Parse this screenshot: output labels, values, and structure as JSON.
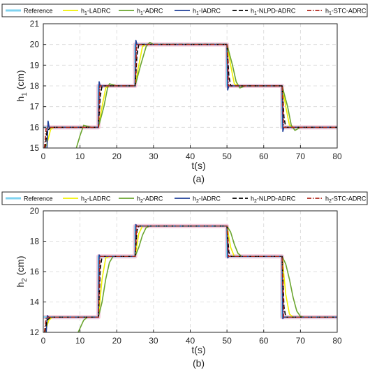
{
  "chart_data": [
    {
      "type": "line",
      "caption": "(a)",
      "xlabel": "t(s)",
      "ylabel": "h1 (cm)",
      "ylabel_main": "h",
      "ylabel_sub": "1",
      "ylabel_unit": " (cm)",
      "xlim": [
        0,
        80
      ],
      "ylim": [
        15,
        21
      ],
      "xticks": [
        "0",
        "10",
        "20",
        "30",
        "40",
        "50",
        "60",
        "70",
        "80"
      ],
      "yticks": [
        "15",
        "16",
        "17",
        "18",
        "19",
        "20",
        "21"
      ],
      "grid": true,
      "legend_position": "top",
      "reference_steps": [
        {
          "t": 0,
          "v": 16
        },
        {
          "t": 15,
          "v": 18
        },
        {
          "t": 25,
          "v": 20
        },
        {
          "t": 50,
          "v": 18
        },
        {
          "t": 65,
          "v": 16
        },
        {
          "t": 80,
          "v": 16
        }
      ],
      "series": [
        {
          "label": "Reference",
          "main": "Reference",
          "sub": "",
          "suffix": "",
          "color": "#7fd3f0",
          "dash": "",
          "width": 2.5,
          "points": [
            [
              0,
              16
            ],
            [
              15,
              16
            ],
            [
              15,
              18
            ],
            [
              25,
              18
            ],
            [
              25,
              20
            ],
            [
              50,
              20
            ],
            [
              50,
              18
            ],
            [
              65,
              18
            ],
            [
              65,
              16
            ],
            [
              80,
              16
            ]
          ]
        },
        {
          "label": "h1-LADRC",
          "main": "h",
          "sub": "1",
          "suffix": "-LADRC",
          "color": "#f0f000",
          "dash": "",
          "width": 1.6,
          "points": [
            [
              0,
              14.9
            ],
            [
              1,
              15.2
            ],
            [
              2,
              15.9
            ],
            [
              3,
              16.0
            ],
            [
              15,
              16.0
            ],
            [
              16,
              17.0
            ],
            [
              17,
              17.9
            ],
            [
              18,
              18.0
            ],
            [
              25,
              18.0
            ],
            [
              26,
              19.0
            ],
            [
              27,
              19.9
            ],
            [
              28,
              20.0
            ],
            [
              50,
              20.0
            ],
            [
              51,
              19.0
            ],
            [
              52,
              18.1
            ],
            [
              53,
              18.0
            ],
            [
              65,
              18.0
            ],
            [
              66,
              17.0
            ],
            [
              67,
              16.1
            ],
            [
              68,
              16.0
            ],
            [
              80,
              16.0
            ]
          ]
        },
        {
          "label": "h1-ADRC",
          "main": "h",
          "sub": "1",
          "suffix": "-ADRC",
          "color": "#6aa52e",
          "dash": "",
          "width": 1.6,
          "points": [
            [
              9,
              15.0
            ],
            [
              10,
              15.6
            ],
            [
              11,
              16.1
            ],
            [
              12,
              16.05
            ],
            [
              13,
              16.0
            ],
            [
              15,
              16.0
            ],
            [
              16.5,
              17.0
            ],
            [
              17.5,
              17.9
            ],
            [
              18,
              18.1
            ],
            [
              20,
              18.0
            ],
            [
              25,
              18.0
            ],
            [
              26.5,
              19.0
            ],
            [
              28,
              19.9
            ],
            [
              29,
              20.1
            ],
            [
              30,
              20.0
            ],
            [
              50,
              20.0
            ],
            [
              51.5,
              19.0
            ],
            [
              52.5,
              18.2
            ],
            [
              53.5,
              17.9
            ],
            [
              55,
              18.0
            ],
            [
              65,
              18.0
            ],
            [
              66.5,
              17.0
            ],
            [
              67.5,
              16.1
            ],
            [
              68.5,
              15.85
            ],
            [
              70,
              16.0
            ],
            [
              80,
              16.0
            ]
          ]
        },
        {
          "label": "h1-IADRC",
          "main": "h",
          "sub": "1",
          "suffix": "-IADRC",
          "color": "#1f3f9a",
          "dash": "",
          "width": 1.6,
          "points": [
            [
              1,
              15.0
            ],
            [
              1.3,
              16.3
            ],
            [
              1.6,
              16.0
            ],
            [
              15,
              16.0
            ],
            [
              15.2,
              18.2
            ],
            [
              15.5,
              18.0
            ],
            [
              25,
              18.0
            ],
            [
              25.2,
              20.2
            ],
            [
              25.5,
              20.0
            ],
            [
              50,
              20.0
            ],
            [
              50.2,
              17.8
            ],
            [
              50.5,
              18.0
            ],
            [
              65,
              18.0
            ],
            [
              65.2,
              15.8
            ],
            [
              65.5,
              16.0
            ],
            [
              80,
              16.0
            ]
          ]
        },
        {
          "label": "h1-NLPD-ADRC",
          "main": "h",
          "sub": "1",
          "suffix": "-NLPD-ADRC",
          "color": "#000000",
          "dash": "6,3",
          "width": 1.6,
          "points": [
            [
              0.5,
              15.0
            ],
            [
              1,
              15.8
            ],
            [
              2,
              16.0
            ],
            [
              15,
              16.0
            ],
            [
              15.5,
              17.5
            ],
            [
              16,
              18.0
            ],
            [
              25,
              18.0
            ],
            [
              25.5,
              19.5
            ],
            [
              26,
              20.0
            ],
            [
              50,
              20.0
            ],
            [
              50.5,
              18.5
            ],
            [
              51,
              18.0
            ],
            [
              65,
              18.0
            ],
            [
              65.5,
              16.5
            ],
            [
              66,
              16.0
            ],
            [
              80,
              16.0
            ]
          ]
        },
        {
          "label": "h1-STC-ADRC",
          "main": "h",
          "sub": "1",
          "suffix": "-STC-ADRC",
          "color": "#b0251b",
          "dash": "6,2,1.5,2",
          "width": 1.6,
          "points": [
            [
              0.3,
              15.0
            ],
            [
              0.8,
              16.0
            ],
            [
              15,
              16.0
            ],
            [
              15.4,
              18.0
            ],
            [
              25,
              18.0
            ],
            [
              25.4,
              20.0
            ],
            [
              50,
              20.0
            ],
            [
              50.4,
              18.0
            ],
            [
              65,
              18.0
            ],
            [
              65.4,
              16.0
            ],
            [
              80,
              16.0
            ]
          ]
        }
      ]
    },
    {
      "type": "line",
      "caption": "(b)",
      "xlabel": "t(s)",
      "ylabel": "h2 (cm)",
      "ylabel_main": "h",
      "ylabel_sub": "2",
      "ylabel_unit": " (cm)",
      "xlim": [
        0,
        80
      ],
      "ylim": [
        12,
        20
      ],
      "xticks": [
        "0",
        "10",
        "20",
        "30",
        "40",
        "50",
        "60",
        "70",
        "80"
      ],
      "yticks": [
        "12",
        "14",
        "16",
        "18",
        "20"
      ],
      "grid": true,
      "legend_position": "top",
      "reference_steps": [
        {
          "t": 0,
          "v": 13
        },
        {
          "t": 15,
          "v": 17
        },
        {
          "t": 25,
          "v": 19
        },
        {
          "t": 50,
          "v": 17
        },
        {
          "t": 65,
          "v": 13
        },
        {
          "t": 80,
          "v": 13
        }
      ],
      "series": [
        {
          "label": "Reference",
          "main": "Reference",
          "sub": "",
          "suffix": "",
          "color": "#7fd3f0",
          "dash": "",
          "width": 2.5,
          "points": [
            [
              0,
              13
            ],
            [
              15,
              13
            ],
            [
              15,
              17
            ],
            [
              25,
              17
            ],
            [
              25,
              19
            ],
            [
              50,
              19
            ],
            [
              50,
              17
            ],
            [
              65,
              17
            ],
            [
              65,
              13
            ],
            [
              80,
              13
            ]
          ]
        },
        {
          "label": "h2-LADRC",
          "main": "h",
          "sub": "2",
          "suffix": "-LADRC",
          "color": "#f0f000",
          "dash": "",
          "width": 1.6,
          "points": [
            [
              0.5,
              12.0
            ],
            [
              1.5,
              12.8
            ],
            [
              2.5,
              13.0
            ],
            [
              15,
              13.0
            ],
            [
              16,
              15.5
            ],
            [
              17,
              16.9
            ],
            [
              18,
              17.0
            ],
            [
              25,
              17.0
            ],
            [
              26,
              18.5
            ],
            [
              27,
              19.0
            ],
            [
              50,
              19.0
            ],
            [
              51,
              17.6
            ],
            [
              52,
              17.0
            ],
            [
              65,
              17.0
            ],
            [
              66,
              14.5
            ],
            [
              67,
              13.2
            ],
            [
              68,
              13.0
            ],
            [
              80,
              13.0
            ]
          ]
        },
        {
          "label": "h2-ADRC",
          "main": "h",
          "sub": "2",
          "suffix": "-ADRC",
          "color": "#6aa52e",
          "dash": "",
          "width": 1.6,
          "points": [
            [
              9.5,
              12.0
            ],
            [
              11,
              12.8
            ],
            [
              12,
              13.0
            ],
            [
              15,
              13.0
            ],
            [
              16,
              14.0
            ],
            [
              17,
              15.5
            ],
            [
              18,
              16.6
            ],
            [
              19,
              17.0
            ],
            [
              25,
              17.0
            ],
            [
              26,
              17.6
            ],
            [
              27,
              18.4
            ],
            [
              28,
              18.9
            ],
            [
              29,
              19.0
            ],
            [
              50,
              19.0
            ],
            [
              51,
              18.6
            ],
            [
              52,
              17.8
            ],
            [
              53,
              17.2
            ],
            [
              54,
              17.0
            ],
            [
              65,
              17.0
            ],
            [
              66,
              16.5
            ],
            [
              67,
              15.5
            ],
            [
              68,
              14.3
            ],
            [
              69,
              13.4
            ],
            [
              70,
              13.05
            ],
            [
              71,
              13.0
            ],
            [
              80,
              13.0
            ]
          ]
        },
        {
          "label": "h2-IADRC",
          "main": "h",
          "sub": "2",
          "suffix": "-IADRC",
          "color": "#1f3f9a",
          "dash": "",
          "width": 1.6,
          "points": [
            [
              0.8,
              12.0
            ],
            [
              1.1,
              13.1
            ],
            [
              1.5,
              13.0
            ],
            [
              15,
              13.0
            ],
            [
              15.2,
              17.1
            ],
            [
              15.5,
              17.0
            ],
            [
              25,
              17.0
            ],
            [
              25.2,
              19.1
            ],
            [
              25.5,
              19.0
            ],
            [
              50,
              19.0
            ],
            [
              50.2,
              16.9
            ],
            [
              50.5,
              17.0
            ],
            [
              65,
              17.0
            ],
            [
              65.2,
              12.9
            ],
            [
              65.5,
              13.0
            ],
            [
              80,
              13.0
            ]
          ]
        },
        {
          "label": "h2-NLPD-ADRC",
          "main": "h",
          "sub": "2",
          "suffix": "-NLPD-ADRC",
          "color": "#000000",
          "dash": "6,3",
          "width": 1.6,
          "points": [
            [
              0.4,
              12.0
            ],
            [
              1,
              12.8
            ],
            [
              2,
              13.0
            ],
            [
              15,
              13.0
            ],
            [
              15.5,
              16.2
            ],
            [
              16,
              17.0
            ],
            [
              25,
              17.0
            ],
            [
              25.5,
              18.7
            ],
            [
              26,
              19.0
            ],
            [
              50,
              19.0
            ],
            [
              50.5,
              17.3
            ],
            [
              51,
              17.0
            ],
            [
              65,
              17.0
            ],
            [
              65.5,
              13.7
            ],
            [
              66,
              13.0
            ],
            [
              80,
              13.0
            ]
          ]
        },
        {
          "label": "h2-STC-ADRC",
          "main": "h",
          "sub": "2",
          "suffix": "-STC-ADRC",
          "color": "#b0251b",
          "dash": "6,2,1.5,2",
          "width": 1.6,
          "points": [
            [
              0.3,
              12.0
            ],
            [
              0.8,
              13.0
            ],
            [
              15,
              13.0
            ],
            [
              15.4,
              17.0
            ],
            [
              25,
              17.0
            ],
            [
              25.4,
              19.0
            ],
            [
              50,
              19.0
            ],
            [
              50.4,
              17.0
            ],
            [
              65,
              17.0
            ],
            [
              65.4,
              13.0
            ],
            [
              80,
              13.0
            ]
          ]
        }
      ]
    }
  ]
}
